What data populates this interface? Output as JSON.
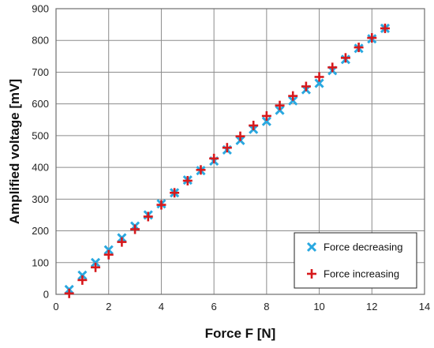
{
  "chart_data": {
    "type": "scatter",
    "title": "",
    "xlabel": "Force F [N]",
    "ylabel": "Amplified voltage  [mV]",
    "xlim": [
      0,
      14
    ],
    "ylim": [
      0,
      900
    ],
    "xticks": [
      0,
      2,
      4,
      6,
      8,
      10,
      12,
      14
    ],
    "yticks": [
      0,
      100,
      200,
      300,
      400,
      500,
      600,
      700,
      800,
      900
    ],
    "grid": true,
    "legend_position": "bottom-right",
    "series": [
      {
        "name": "Force decreasing",
        "marker": "x",
        "color": "#29a8e0",
        "x": [
          0.5,
          1,
          1.5,
          2,
          2.5,
          3,
          3.5,
          4,
          4.5,
          5,
          5.5,
          6,
          6.5,
          7,
          7.5,
          8,
          8.5,
          9,
          9.5,
          10,
          10.5,
          11,
          11.5,
          12,
          12.5
        ],
        "y": [
          15,
          60,
          100,
          140,
          178,
          215,
          250,
          285,
          320,
          360,
          390,
          420,
          455,
          485,
          520,
          545,
          580,
          610,
          645,
          665,
          705,
          740,
          775,
          805,
          838
        ]
      },
      {
        "name": "Force increasing",
        "marker": "+",
        "color": "#d7191c",
        "x": [
          0.5,
          1,
          1.5,
          2,
          2.5,
          3,
          3.5,
          4,
          4.5,
          5,
          5.5,
          6,
          6.5,
          7,
          7.5,
          8,
          8.5,
          9,
          9.5,
          10,
          10.5,
          11,
          11.5,
          12,
          12.5
        ],
        "y": [
          3,
          45,
          85,
          125,
          165,
          205,
          245,
          282,
          320,
          358,
          392,
          428,
          462,
          498,
          532,
          562,
          595,
          625,
          655,
          685,
          715,
          745,
          778,
          808,
          838
        ]
      }
    ]
  }
}
